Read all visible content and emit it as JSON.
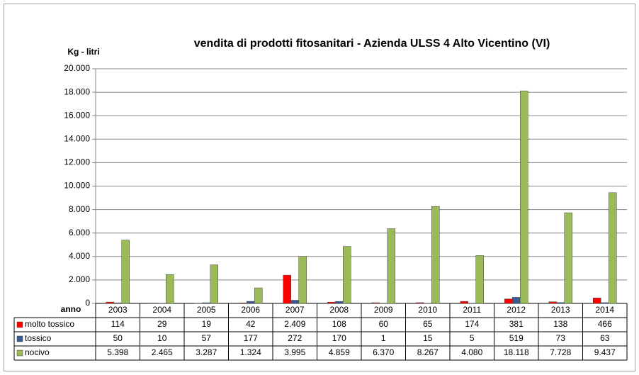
{
  "chart_data": {
    "type": "bar",
    "title": "vendita di prodotti fitosanitari - Azienda ULSS 4 Alto Vicentino (VI)",
    "y_axis_label": "Kg - litri",
    "x_axis_label": "anno",
    "categories": [
      "2003",
      "2004",
      "2005",
      "2006",
      "2007",
      "2008",
      "2009",
      "2010",
      "2011",
      "2012",
      "2013",
      "2014"
    ],
    "series": [
      {
        "name": "molto tossico",
        "color": "#ff0000",
        "values": [
          114,
          29,
          19,
          42,
          2409,
          108,
          60,
          65,
          174,
          381,
          138,
          466
        ],
        "value_labels": [
          "114",
          "29",
          "19",
          "42",
          "2.409",
          "108",
          "60",
          "65",
          "174",
          "381",
          "138",
          "466"
        ]
      },
      {
        "name": "tossico",
        "color": "#3a5a94",
        "values": [
          50,
          10,
          57,
          177,
          272,
          170,
          1,
          15,
          5,
          519,
          73,
          63
        ],
        "value_labels": [
          "50",
          "10",
          "57",
          "177",
          "272",
          "170",
          "1",
          "15",
          "5",
          "519",
          "73",
          "63"
        ]
      },
      {
        "name": "nocivo",
        "color": "#9bbb59",
        "values": [
          5398,
          2465,
          3287,
          1324,
          3995,
          4859,
          6370,
          8267,
          4080,
          18118,
          7728,
          9437
        ],
        "value_labels": [
          "5.398",
          "2.465",
          "3.287",
          "1.324",
          "3.995",
          "4.859",
          "6.370",
          "8.267",
          "4.080",
          "18.118",
          "7.728",
          "9.437"
        ]
      }
    ],
    "ylim": [
      0,
      20000
    ],
    "yticks": [
      0,
      {
        "value": 2000,
        "label": "2.000"
      },
      {
        "value": 4000,
        "label": "4.000"
      },
      {
        "value": 6000,
        "label": "6.000"
      },
      {
        "value": 8000,
        "label": "8.000"
      },
      {
        "value": 10000,
        "label": "10.000"
      },
      {
        "value": 12000,
        "label": "12.000"
      },
      {
        "value": 14000,
        "label": "14.000"
      },
      {
        "value": 16000,
        "label": "16.000"
      },
      {
        "value": 18000,
        "label": "18.000"
      },
      {
        "value": 20000,
        "label": "20.000"
      }
    ],
    "grid": true
  }
}
